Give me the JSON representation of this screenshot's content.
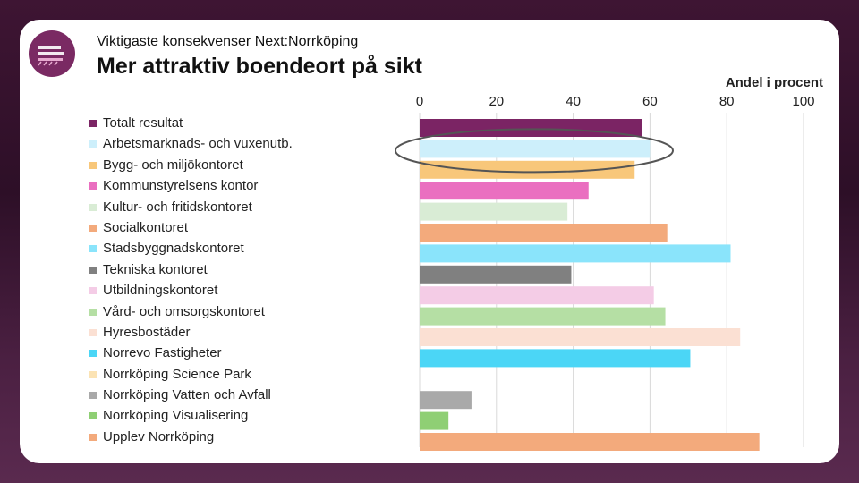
{
  "header": {
    "subtitle": "Viktigaste konsekvenser Next:Norrköping",
    "title": "Mer attraktiv boendeort på sikt"
  },
  "chart_data": {
    "type": "bar",
    "orientation": "horizontal",
    "title": "Mer attraktiv boendeort på sikt",
    "xlabel": "Andel i procent",
    "xlim": [
      0,
      100
    ],
    "xticks": [
      0,
      20,
      40,
      60,
      80,
      100
    ],
    "grid": true,
    "legend_position": "left",
    "highlight": "Arbetsmarknads- och vuxenutb.",
    "series": [
      {
        "name": "Totalt resultat",
        "value": 58,
        "color": "#7b2464"
      },
      {
        "name": "Arbetsmarknads- och vuxenutb.",
        "value": 60,
        "color": "#cdeffb"
      },
      {
        "name": "Bygg- och miljökontoret",
        "value": 56,
        "color": "#f8c77a"
      },
      {
        "name": "Kommunstyrelsens kontor",
        "value": 44,
        "color": "#ea6fc0"
      },
      {
        "name": "Kultur- och fritidskontoret",
        "value": 38.5,
        "color": "#d9ecd5"
      },
      {
        "name": "Socialkontoret",
        "value": 64.5,
        "color": "#f3aa7c"
      },
      {
        "name": "Stadsbyggnadskontoret",
        "value": 81,
        "color": "#8ae4fb"
      },
      {
        "name": "Tekniska kontoret",
        "value": 39.5,
        "color": "#808080"
      },
      {
        "name": "Utbildningskontoret",
        "value": 61,
        "color": "#f4cce6"
      },
      {
        "name": "Vård- och omsorgskontoret",
        "value": 64,
        "color": "#b5dfa4"
      },
      {
        "name": "Hyresbostäder",
        "value": 83.5,
        "color": "#fbe0d3"
      },
      {
        "name": "Norrevo Fastigheter",
        "value": 70.5,
        "color": "#4bd6f6"
      },
      {
        "name": "Norrköping Science Park",
        "value": 0,
        "color": "#fbe3b4"
      },
      {
        "name": "Norrköping Vatten och Avfall",
        "value": 13.5,
        "color": "#a9a9a9"
      },
      {
        "name": "Norrköping Visualisering",
        "value": 7.5,
        "color": "#8fcf74"
      },
      {
        "name": "Upplev Norrköping",
        "value": 88.5,
        "color": "#f3aa7c"
      }
    ]
  }
}
